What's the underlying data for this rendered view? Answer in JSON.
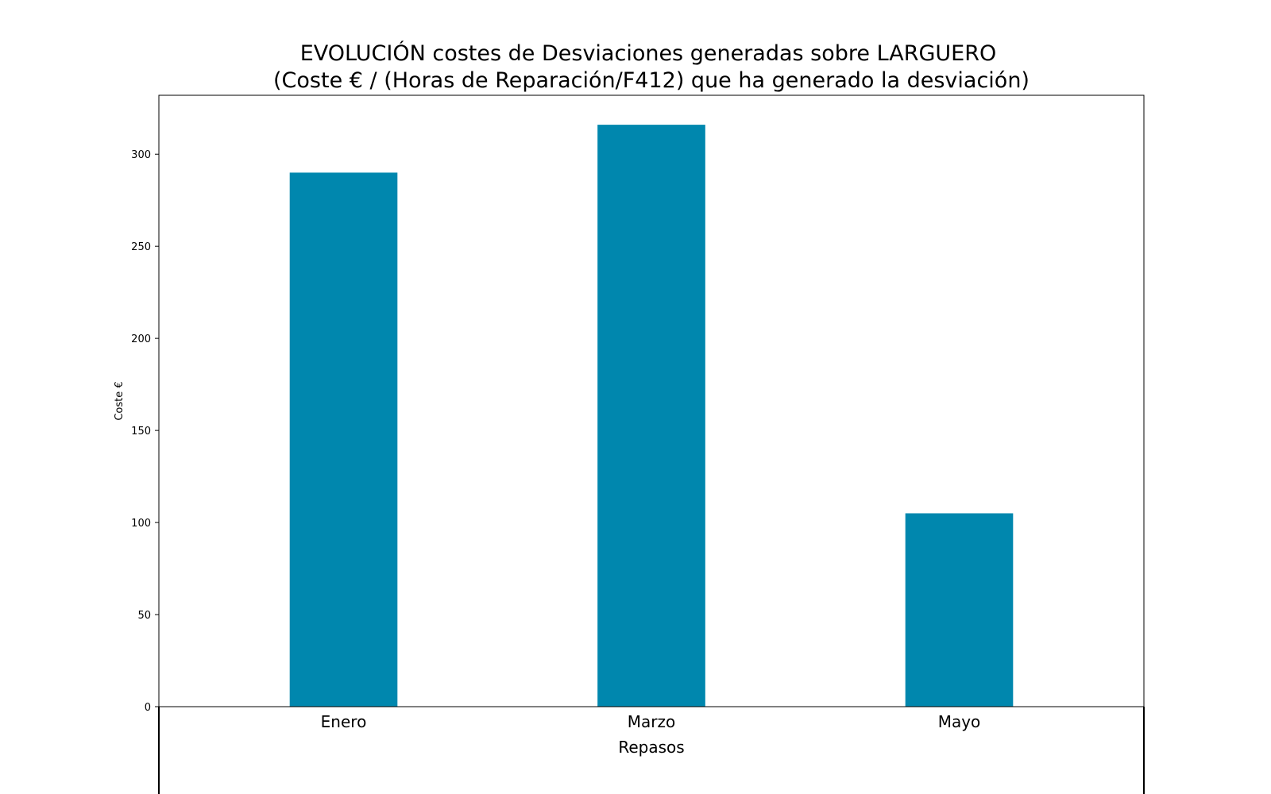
{
  "chart_data": {
    "type": "bar",
    "title": "EVOLUCIÓN costes de Desviaciones  generadas  sobre LARGUERO",
    "subtitle": "(Coste € / (Horas de Reparación/F412) que ha generado la desviación)",
    "xlabel": "Repasos",
    "ylabel": "Coste €",
    "categories": [
      "Enero",
      "Marzo",
      "Mayo"
    ],
    "values": [
      290,
      316,
      105
    ],
    "ylim": [
      0,
      332
    ],
    "yticks": [
      0,
      50,
      100,
      150,
      200,
      250,
      300
    ],
    "bar_color": "#0087AE",
    "grid": false,
    "legend": "none"
  }
}
